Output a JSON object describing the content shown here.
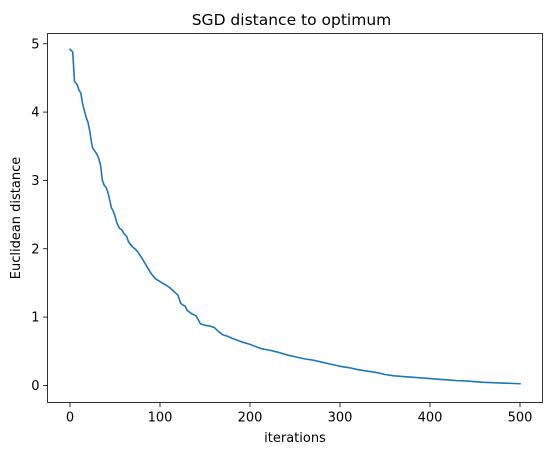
{
  "chart_data": {
    "type": "line",
    "title": "SGD distance to optimum",
    "xlabel": "iterations",
    "ylabel": "Euclidean distance",
    "xlim": [
      -25,
      525
    ],
    "ylim": [
      -0.25,
      5.15
    ],
    "xticks": [
      0,
      100,
      200,
      300,
      400,
      500
    ],
    "yticks": [
      0,
      1,
      2,
      3,
      4,
      5
    ],
    "grid": false,
    "line_color": "#1f77b4",
    "series": [
      {
        "x": [
          0,
          3,
          5,
          8,
          10,
          12,
          14,
          16,
          18,
          20,
          22,
          24,
          25,
          28,
          30,
          32,
          34,
          36,
          38,
          40,
          42,
          44,
          46,
          48,
          50,
          52,
          55,
          58,
          60,
          63,
          65,
          68,
          70,
          72,
          75,
          78,
          80,
          85,
          90,
          95,
          100,
          105,
          110,
          115,
          120,
          123,
          125,
          128,
          130,
          135,
          140,
          145,
          150,
          155,
          160,
          165,
          170,
          175,
          180,
          190,
          200,
          210,
          215,
          220,
          230,
          240,
          250,
          260,
          270,
          280,
          290,
          300,
          310,
          320,
          330,
          340,
          350,
          360,
          370,
          380,
          390,
          400,
          410,
          420,
          430,
          440,
          450,
          460,
          470,
          480,
          490,
          500
        ],
        "y": [
          4.92,
          4.88,
          4.45,
          4.4,
          4.32,
          4.28,
          4.12,
          4.02,
          3.92,
          3.85,
          3.72,
          3.55,
          3.48,
          3.42,
          3.38,
          3.32,
          3.22,
          3.0,
          2.93,
          2.9,
          2.83,
          2.72,
          2.6,
          2.55,
          2.48,
          2.38,
          2.3,
          2.27,
          2.22,
          2.18,
          2.1,
          2.05,
          2.02,
          2.0,
          1.96,
          1.9,
          1.86,
          1.75,
          1.64,
          1.56,
          1.52,
          1.48,
          1.44,
          1.38,
          1.32,
          1.2,
          1.18,
          1.16,
          1.1,
          1.05,
          1.02,
          0.9,
          0.88,
          0.87,
          0.85,
          0.79,
          0.74,
          0.72,
          0.69,
          0.64,
          0.6,
          0.55,
          0.53,
          0.52,
          0.49,
          0.45,
          0.42,
          0.39,
          0.37,
          0.34,
          0.31,
          0.28,
          0.26,
          0.23,
          0.21,
          0.19,
          0.16,
          0.14,
          0.13,
          0.12,
          0.11,
          0.1,
          0.09,
          0.08,
          0.07,
          0.065,
          0.055,
          0.045,
          0.04,
          0.035,
          0.03,
          0.025
        ]
      }
    ]
  }
}
